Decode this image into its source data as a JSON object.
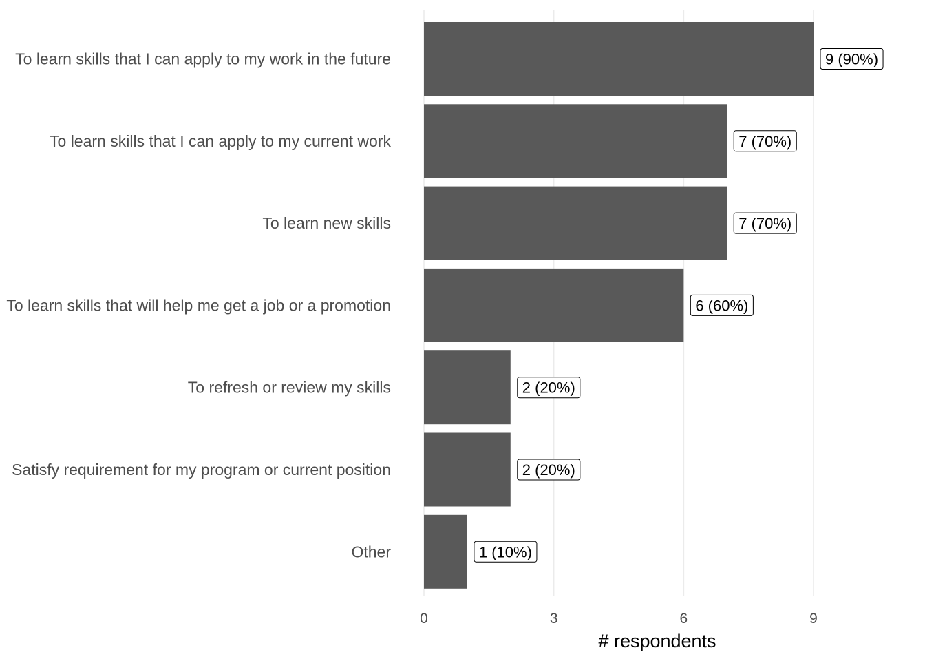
{
  "chart_data": {
    "type": "bar",
    "orientation": "horizontal",
    "categories": [
      "To learn skills that I can apply to my work in the future",
      "To learn skills that I can apply to my current work",
      "To learn new skills",
      "To learn skills that will help me get a job or a promotion",
      "To refresh or review my skills",
      "Satisfy requirement for my program or current position",
      "Other"
    ],
    "values": [
      9,
      7,
      7,
      6,
      2,
      2,
      1
    ],
    "data_labels": [
      "9 (90%)",
      "7 (70%)",
      "7 (70%)",
      "6 (60%)",
      "2 (20%)",
      "2 (20%)",
      "1 (10%)"
    ],
    "xlabel": "# respondents",
    "ylabel": "",
    "title": "",
    "xlim": [
      0,
      9
    ],
    "x_ticks": [
      0,
      3,
      6,
      9
    ],
    "grid": "vertical",
    "legend": "none",
    "colors": {
      "bar": "#595959",
      "grid": "#ebebeb",
      "label_border": "#000000"
    }
  }
}
